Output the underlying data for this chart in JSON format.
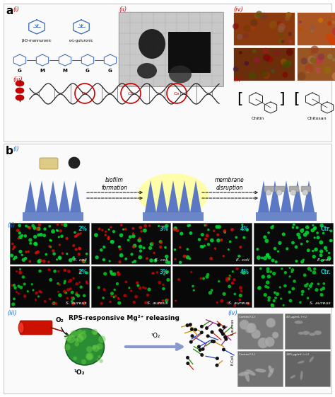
{
  "fig_width": 4.74,
  "fig_height": 5.61,
  "dpi": 100,
  "bg_color": "#ffffff",
  "panel_a_label": "a",
  "panel_b_label": "b",
  "label_color_red": "#cc0000",
  "label_color_blue": "#1a6ecc",
  "cyan_color": "#00cccc",
  "section_a": {
    "i_label": "(i)",
    "ii_label": "(ii)",
    "iii_label": "(iii)",
    "iv_label": "(iv)",
    "v_label": "(v)",
    "monomer1": "β-D-mannuronic",
    "monomer2": "α-L-guluronic",
    "chain_labels": [
      "G",
      "M",
      "M",
      "G",
      "G"
    ],
    "ca_labels": [
      "Ca",
      "Ca",
      "Ca"
    ],
    "chitin_label": "Chitin",
    "chitosan_label": "Chitosan"
  },
  "section_b": {
    "i_label": "(i)",
    "ii_label": "(ii)",
    "iii_label": "(iii)",
    "iv_label": "(iv)",
    "biofilm_text": "biofilm\nformation",
    "membrane_text": "membrane\ndisruption",
    "rps_text": "RPS-responsive Mg²⁺ releasing",
    "o2_label": "O₂",
    "singlet_o2_label": "¹O₂",
    "singlet_o2_arrow": "¹O₂",
    "ecoli_row_labels": [
      "E. coli",
      "E. coli",
      "E. coli",
      "E. coli"
    ],
    "saureus_row_labels": [
      "S. aureus",
      "S. aureus",
      "S. aureus",
      "S. aureus"
    ],
    "conc_labels_top": [
      "2%",
      "3%",
      "4%",
      "Ctr."
    ],
    "conc_labels_bot": [
      "2%",
      "3%",
      "4%",
      "Ctr."
    ],
    "sem_row_labels": [
      "S.aureus",
      "E.Coli"
    ],
    "sem_labels": [
      "Control (-L)",
      "40 μg/mL (+L)",
      "Control (-L)",
      "160 μg/mL (+L)"
    ]
  }
}
